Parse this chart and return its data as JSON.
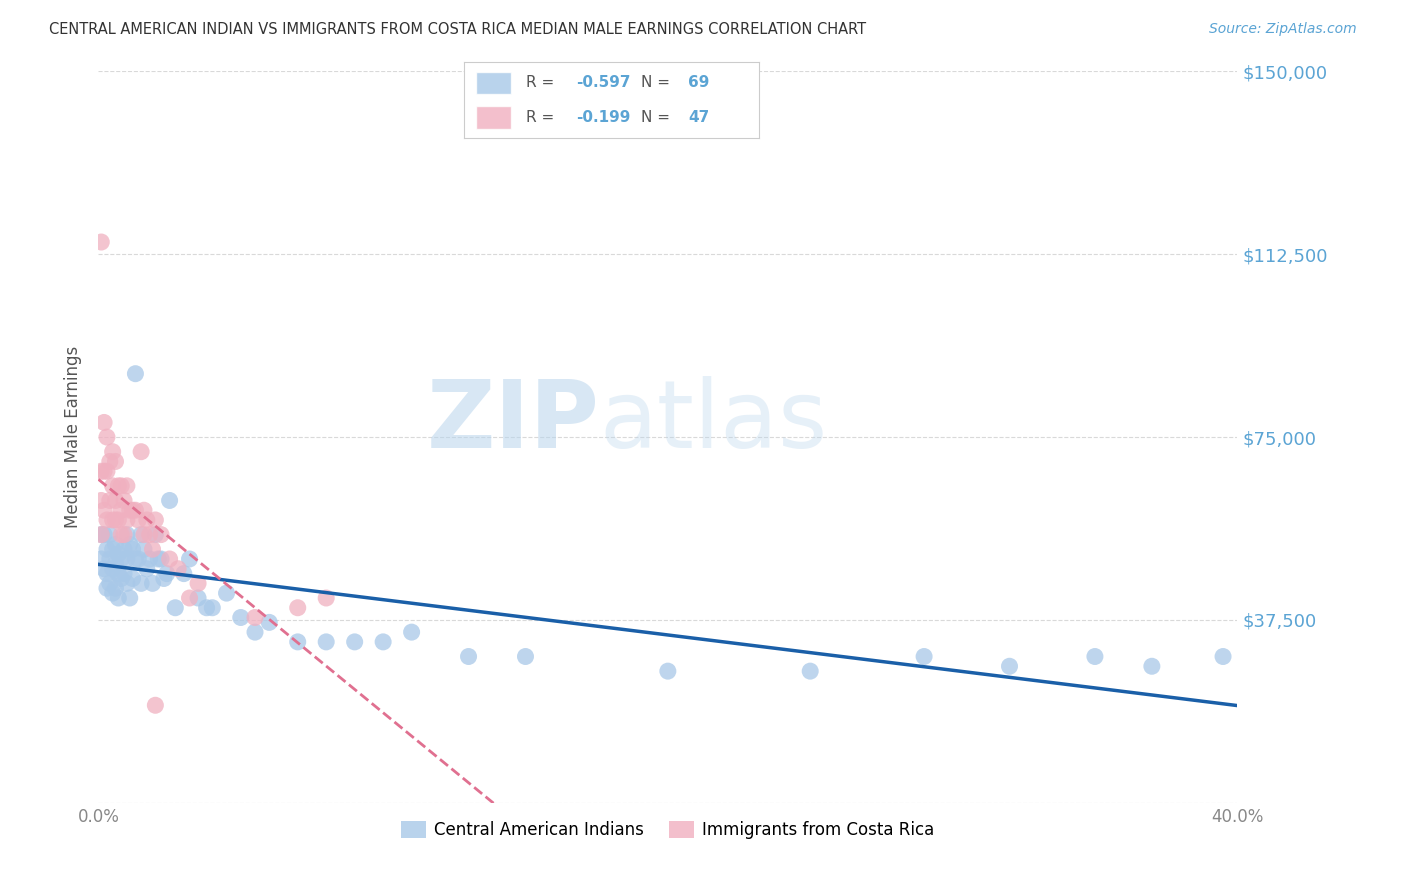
{
  "title": "CENTRAL AMERICAN INDIAN VS IMMIGRANTS FROM COSTA RICA MEDIAN MALE EARNINGS CORRELATION CHART",
  "source": "Source: ZipAtlas.com",
  "ylabel": "Median Male Earnings",
  "xlim": [
    0.0,
    0.4
  ],
  "ylim": [
    0,
    150000
  ],
  "yticks": [
    0,
    37500,
    75000,
    112500,
    150000
  ],
  "background_color": "#ffffff",
  "grid_color": "#d0d0d0",
  "blue_color": "#a8c8e8",
  "pink_color": "#f0b0c0",
  "blue_line_color": "#1a5fa8",
  "pink_line_color": "#e07090",
  "series1_label": "Central American Indians",
  "series2_label": "Immigrants from Costa Rica",
  "R1": "-0.597",
  "N1": "69",
  "R2": "-0.199",
  "N2": "47",
  "blue_x": [
    0.001,
    0.001,
    0.002,
    0.002,
    0.003,
    0.003,
    0.003,
    0.004,
    0.004,
    0.004,
    0.005,
    0.005,
    0.005,
    0.006,
    0.006,
    0.006,
    0.007,
    0.007,
    0.007,
    0.008,
    0.008,
    0.009,
    0.009,
    0.01,
    0.01,
    0.01,
    0.011,
    0.011,
    0.012,
    0.012,
    0.013,
    0.013,
    0.014,
    0.015,
    0.015,
    0.016,
    0.017,
    0.018,
    0.019,
    0.02,
    0.021,
    0.022,
    0.023,
    0.024,
    0.025,
    0.027,
    0.03,
    0.032,
    0.035,
    0.038,
    0.04,
    0.045,
    0.05,
    0.055,
    0.06,
    0.07,
    0.08,
    0.09,
    0.1,
    0.11,
    0.13,
    0.15,
    0.2,
    0.25,
    0.29,
    0.32,
    0.35,
    0.37,
    0.395
  ],
  "blue_y": [
    55000,
    50000,
    55000,
    48000,
    52000,
    47000,
    44000,
    55000,
    50000,
    45000,
    52000,
    48000,
    43000,
    53000,
    49000,
    44000,
    51000,
    47000,
    42000,
    50000,
    46000,
    52000,
    47000,
    55000,
    50000,
    45000,
    53000,
    42000,
    52000,
    46000,
    88000,
    50000,
    50000,
    55000,
    45000,
    52000,
    48000,
    50000,
    45000,
    55000,
    50000,
    50000,
    46000,
    47000,
    62000,
    40000,
    47000,
    50000,
    42000,
    40000,
    40000,
    43000,
    38000,
    35000,
    37000,
    33000,
    33000,
    33000,
    33000,
    35000,
    30000,
    30000,
    27000,
    27000,
    30000,
    28000,
    30000,
    28000,
    30000
  ],
  "pink_x": [
    0.001,
    0.001,
    0.001,
    0.001,
    0.002,
    0.002,
    0.002,
    0.003,
    0.003,
    0.003,
    0.004,
    0.004,
    0.005,
    0.005,
    0.005,
    0.006,
    0.006,
    0.006,
    0.007,
    0.007,
    0.008,
    0.008,
    0.008,
    0.009,
    0.009,
    0.01,
    0.01,
    0.011,
    0.012,
    0.013,
    0.014,
    0.015,
    0.016,
    0.016,
    0.017,
    0.018,
    0.019,
    0.02,
    0.022,
    0.025,
    0.028,
    0.032,
    0.035,
    0.055,
    0.07,
    0.08,
    0.02
  ],
  "pink_y": [
    115000,
    68000,
    62000,
    55000,
    78000,
    68000,
    60000,
    75000,
    68000,
    58000,
    70000,
    62000,
    72000,
    65000,
    58000,
    70000,
    62000,
    58000,
    65000,
    58000,
    65000,
    60000,
    55000,
    62000,
    55000,
    65000,
    58000,
    60000,
    60000,
    60000,
    58000,
    72000,
    60000,
    55000,
    58000,
    55000,
    52000,
    58000,
    55000,
    50000,
    48000,
    42000,
    45000,
    38000,
    40000,
    42000,
    20000
  ]
}
